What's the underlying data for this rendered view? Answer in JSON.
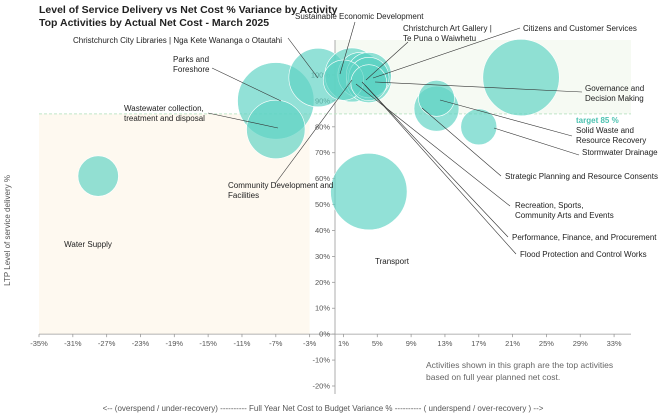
{
  "chart_data": {
    "type": "scatter",
    "title": "Level of Service Delivery vs Net Cost % Variance by Activity",
    "subtitle": "Top Activities by Actual  Net Cost - March 2025",
    "xlabel": "<-- (overspend / under-recovery) ---------- Full Year Net Cost to Budget Variance % ---------- ( underspend / over-recovery ) -->",
    "ylabel": "LTP Level of service delivery %",
    "xlim": [
      -35,
      35
    ],
    "ylim": [
      -20,
      105
    ],
    "x_ticks": [
      "-35%",
      "-31%",
      "-27%",
      "-23%",
      "-19%",
      "-15%",
      "-11%",
      "-7%",
      "-3%",
      "1%",
      "5%",
      "9%",
      "13%",
      "17%",
      "21%",
      "25%",
      "29%",
      "33%"
    ],
    "x_tick_values": [
      -35,
      -31,
      -27,
      -23,
      -19,
      -15,
      -11,
      -7,
      -3,
      1,
      5,
      9,
      13,
      17,
      21,
      25,
      29,
      33
    ],
    "y_ticks": [
      "-20%",
      "-10%",
      "0%",
      "10%",
      "20%",
      "30%",
      "40%",
      "50%",
      "60%",
      "70%",
      "80%",
      "90%",
      "100%"
    ],
    "y_tick_values": [
      -20,
      -10,
      0,
      10,
      20,
      30,
      40,
      50,
      60,
      70,
      80,
      90,
      100
    ],
    "target": {
      "value": 85,
      "label": "target 85 %"
    },
    "note": [
      "Activities shown in this graph are the top activities",
      "based on full year planned net cost."
    ],
    "color": "#5fd3c4",
    "points": [
      {
        "name": "Water Supply",
        "x": -28,
        "y": 61,
        "size": 4.5
      },
      {
        "name": "Parks and Foreshore",
        "x": -7,
        "y": 90,
        "size": 8.5
      },
      {
        "name": "Wastewater collection, treatment and disposal",
        "x": -7,
        "y": 79,
        "size": 6.5
      },
      {
        "name": "Christchurch City Libraries | Nga Kete Wananga o Otautahi",
        "x": -2,
        "y": 99,
        "size": 6.5
      },
      {
        "name": "Sustainable Economic Development",
        "x": 2,
        "y": 100,
        "size": 6
      },
      {
        "name": "Christchurch Art Gallery | Te Puna o Waiwhetu",
        "x": 3,
        "y": 100,
        "size": 5
      },
      {
        "name": "Citizens and Customer Services",
        "x": 4,
        "y": 99,
        "size": 4.5
      },
      {
        "name": "Transport",
        "x": 4,
        "y": 55,
        "size": 8.5
      },
      {
        "name": "Community Development and Facilities",
        "x": 1,
        "y": 98,
        "size": 4.5
      },
      {
        "name": "Governance and Decision Making",
        "x": 22,
        "y": 99,
        "size": 8.5
      },
      {
        "name": "Solid Waste and Resource Recovery",
        "x": 12,
        "y": 87,
        "size": 5
      },
      {
        "name": "Stormwater Drainage",
        "x": 17,
        "y": 80,
        "size": 4
      },
      {
        "name": "Strategic Planning and Resource Consents",
        "x": 12,
        "y": 91,
        "size": 4
      },
      {
        "name": "Recreation, Sports, Community Arts and Events",
        "x": 4,
        "y": 98,
        "size": 5
      },
      {
        "name": "Performance, Finance, and Procurement",
        "x": 4,
        "y": 100,
        "size": 5
      },
      {
        "name": "Flood Protection and Control Works",
        "x": 4,
        "y": 97,
        "size": 4
      }
    ],
    "labels": [
      {
        "name": "Christchurch City Libraries | Nga Kete Wananga o Otautahi",
        "lines": [
          "Christchurch City Libraries | Nga Kete Wananga o Otautahi"
        ]
      },
      {
        "name": "Sustainable Economic Development",
        "lines": [
          "Sustainable Economic Development"
        ]
      },
      {
        "name": "Christchurch Art Gallery | Te Puna o Waiwhetu",
        "lines": [
          "Christchurch Art Gallery |",
          "Te Puna o Waiwhetu"
        ]
      },
      {
        "name": "Citizens and Customer Services",
        "lines": [
          "Citizens and Customer Services"
        ]
      },
      {
        "name": "Parks and Foreshore",
        "lines": [
          "Parks and",
          "Foreshore"
        ]
      },
      {
        "name": "Wastewater collection, treatment and disposal",
        "lines": [
          "Wastewater collection,",
          "treatment and disposal"
        ]
      },
      {
        "name": "Governance and Decision Making",
        "lines": [
          "Governance and",
          "Decision Making"
        ]
      },
      {
        "name": "Solid Waste and Resource Recovery",
        "lines": [
          "Solid Waste and",
          "Resource Recovery"
        ]
      },
      {
        "name": "Stormwater Drainage",
        "lines": [
          "Stormwater Drainage"
        ]
      },
      {
        "name": "Community Development and Facilities",
        "lines": [
          "Community Development and",
          "Facilities"
        ]
      },
      {
        "name": "Strategic Planning and Resource Consents",
        "lines": [
          "Strategic Planning and Resource Consents"
        ]
      },
      {
        "name": "Recreation, Sports, Community Arts and Events",
        "lines": [
          "Recreation, Sports,",
          "Community Arts and Events"
        ]
      },
      {
        "name": "Performance, Finance, and Procurement",
        "lines": [
          "Performance, Finance, and Procurement"
        ]
      },
      {
        "name": "Flood Protection and Control Works",
        "lines": [
          "Flood Protection and Control Works"
        ]
      },
      {
        "name": "Water Supply",
        "lines": [
          "Water Supply"
        ]
      },
      {
        "name": "Transport",
        "lines": [
          "Transport"
        ]
      }
    ]
  }
}
